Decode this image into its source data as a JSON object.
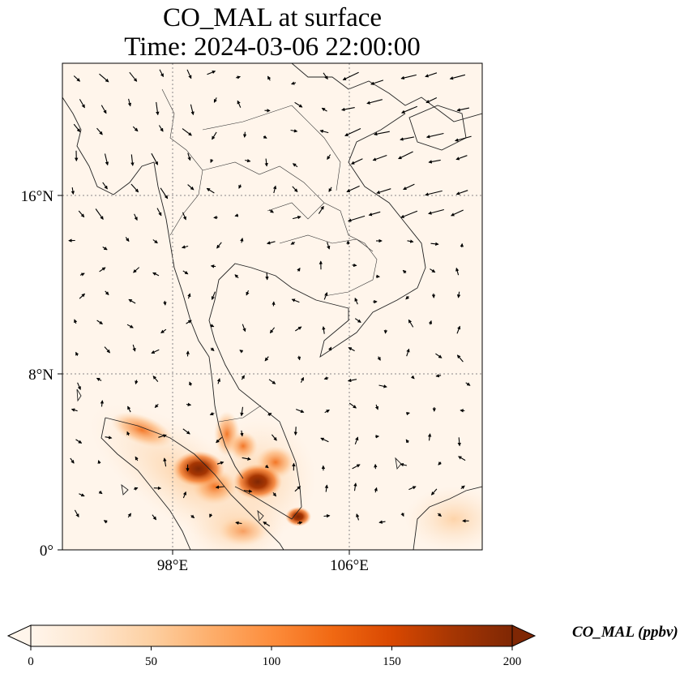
{
  "title": {
    "line1": "CO_MAL at surface",
    "line2": "Time: 2024-03-06 22:00:00"
  },
  "map": {
    "lon_labels": [
      "98°E",
      "106°E"
    ],
    "lat_labels": [
      "16°N",
      "8°N",
      "0°"
    ],
    "gridlines": "dotted",
    "vector_field": "surface wind arrows",
    "background_color": "#fff5eb"
  },
  "colorbar": {
    "label": "CO_MAL (ppbv)",
    "ticks": [
      "0",
      "50",
      "100",
      "150",
      "200"
    ],
    "min": 0,
    "max": 200,
    "extend": "both",
    "colormap": [
      "#fff5eb",
      "#fee6ce",
      "#fdd0a2",
      "#fdae6b",
      "#fd8d3c",
      "#f16913",
      "#d94801",
      "#a63603",
      "#7f2704"
    ]
  },
  "chart_data": {
    "type": "heatmap",
    "variable": "CO_MAL",
    "units": "ppbv",
    "level": "surface",
    "time": "2024-03-06 22:00:00",
    "value_range": [
      0,
      200
    ],
    "hotspots": [
      {
        "lat": 3.5,
        "lon": 99.0,
        "value": 200
      },
      {
        "lat": 3.0,
        "lon": 101.5,
        "value": 190
      },
      {
        "lat": 1.5,
        "lon": 103.5,
        "value": 170
      },
      {
        "lat": 5.5,
        "lon": 100.5,
        "value": 110
      }
    ]
  }
}
